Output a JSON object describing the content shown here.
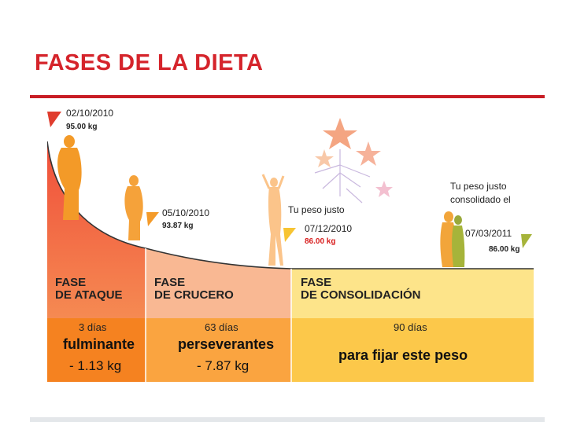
{
  "slide": {
    "title": "FASES DE LA DIETA"
  },
  "milestones": [
    {
      "date": "02/10/2010",
      "weight": "95.00 kg"
    },
    {
      "date": "05/10/2010",
      "weight": "93.87 kg"
    },
    {
      "date": "07/12/2010",
      "weight": "86.00 kg"
    },
    {
      "date": "07/03/2011",
      "weight": "86.00 kg"
    }
  ],
  "notes": {
    "ideal_weight": "Tu peso justo",
    "consolidated_1": "Tu peso justo",
    "consolidated_2": "consolidado el"
  },
  "phases": [
    {
      "line1": "FASE",
      "line2": "DE ATAQUE",
      "days": "3 días",
      "adjective": "fulminante",
      "result": "- 1.13 kg"
    },
    {
      "line1": "FASE",
      "line2": "DE CRUCERO",
      "days": "63 días",
      "adjective": "perseverantes",
      "result": "- 7.87 kg"
    },
    {
      "line1": "FASE",
      "line2": "DE CONSOLIDACIÓN",
      "days": "90 días",
      "adjective": "",
      "result": "para fijar este peso"
    }
  ],
  "colors": {
    "title": "#d5242b",
    "attack_top": "#f47b4f",
    "attack_bottom": "#f58220",
    "cruise_top": "#f8b98e",
    "cruise_bottom": "#f9a23a",
    "consolidation_top": "#fce07a",
    "consolidation_bottom": "#fcc83c",
    "figure": "#f39a28",
    "marker_red": "#e03d2e",
    "marker_orange": "#f49b2a",
    "marker_yellow": "#f7c432",
    "marker_green": "#a6b43a"
  }
}
